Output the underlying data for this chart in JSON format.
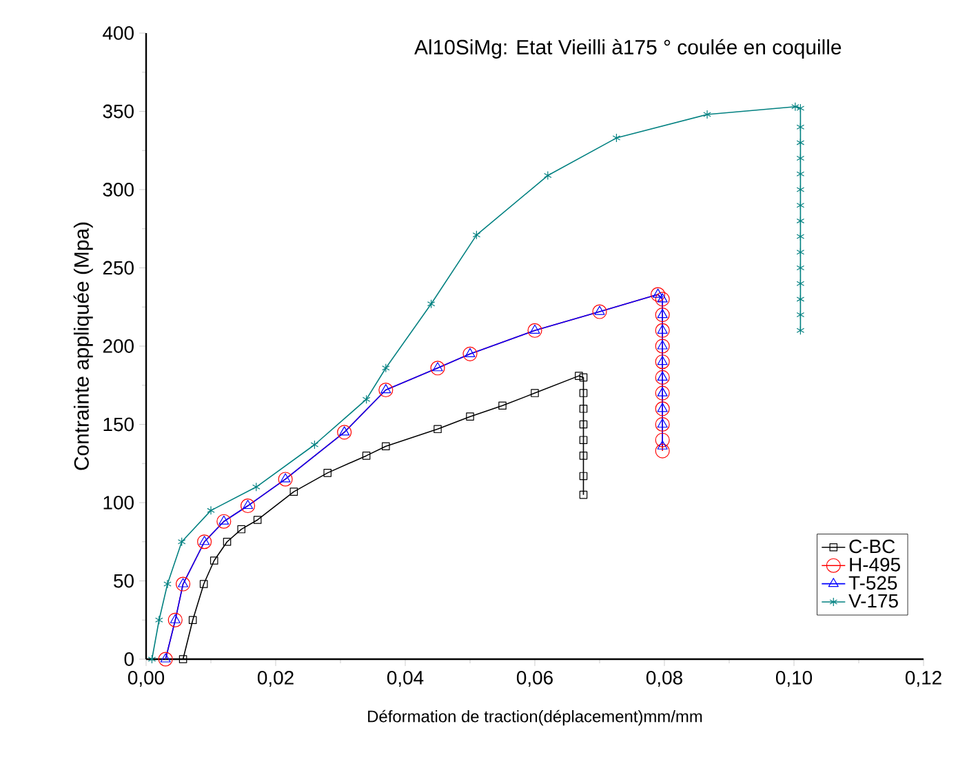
{
  "chart_data": {
    "type": "line",
    "title": "Al10SiMg: Etat Vieilli à175 ° coulée en coquille",
    "xlabel": "Déformation de traction(déplacement)mm/mm",
    "ylabel": "Contrainte appliquée (Mpa)",
    "xlim": [
      0,
      0.12
    ],
    "ylim": [
      0,
      400
    ],
    "xticks": [
      {
        "value": 0,
        "label": "0,00"
      },
      {
        "value": 0.02,
        "label": "0,02"
      },
      {
        "value": 0.04,
        "label": "0,04"
      },
      {
        "value": 0.06,
        "label": "0,06"
      },
      {
        "value": 0.08,
        "label": "0,08"
      },
      {
        "value": 0.1,
        "label": "0,10"
      },
      {
        "value": 0.12,
        "label": "0,12"
      }
    ],
    "yticks": [
      0,
      50,
      100,
      150,
      200,
      250,
      300,
      350,
      400
    ],
    "legend": "bottom right",
    "grid": false,
    "series": [
      {
        "name": "C-BC",
        "color": "#000000",
        "marker": "square",
        "x": [
          0.0057,
          0.0072,
          0.0089,
          0.0105,
          0.0125,
          0.0147,
          0.0172,
          0.0228,
          0.028,
          0.034,
          0.037,
          0.045,
          0.05,
          0.055,
          0.06,
          0.0668,
          0.0675,
          0.0675,
          0.0675,
          0.0675,
          0.0675,
          0.0675,
          0.0675,
          0.0675
        ],
        "values": [
          0,
          25,
          48,
          63,
          75,
          83,
          89,
          107,
          119,
          130,
          136,
          147,
          155,
          162,
          170,
          181,
          180,
          170,
          160,
          150,
          140,
          130,
          117,
          105
        ]
      },
      {
        "name": "H-495",
        "color": "#ff0000",
        "marker": "circle",
        "x": [
          0.003,
          0.0045,
          0.0057,
          0.009,
          0.012,
          0.0157,
          0.0215,
          0.0306,
          0.037,
          0.045,
          0.05,
          0.06,
          0.07,
          0.079,
          0.0797,
          0.0797,
          0.0797,
          0.0797,
          0.0797,
          0.0797,
          0.0797,
          0.0797,
          0.0797,
          0.0797,
          0.0797
        ],
        "values": [
          0,
          25,
          48,
          75,
          88,
          98,
          115,
          145,
          172,
          186,
          195,
          210,
          222,
          233,
          230,
          220,
          210,
          200,
          190,
          180,
          170,
          160,
          150,
          140,
          133
        ]
      },
      {
        "name": "T-525",
        "color": "#0000ff",
        "marker": "triangle",
        "x": [
          0.003,
          0.0045,
          0.0057,
          0.009,
          0.012,
          0.0157,
          0.0215,
          0.0306,
          0.037,
          0.045,
          0.05,
          0.06,
          0.07,
          0.079,
          0.0797,
          0.0797,
          0.0797,
          0.0797,
          0.0797,
          0.0797,
          0.0797,
          0.0797,
          0.0797,
          0.0797
        ],
        "values": [
          0,
          25,
          48,
          75,
          88,
          98,
          115,
          145,
          172,
          186,
          195,
          210,
          222,
          233,
          230,
          220,
          210,
          200,
          190,
          180,
          170,
          160,
          150,
          136
        ]
      },
      {
        "name": "V-175",
        "color": "#008080",
        "marker": "cross",
        "x": [
          0.0009,
          0.002,
          0.0033,
          0.0055,
          0.01,
          0.017,
          0.026,
          0.034,
          0.037,
          0.044,
          0.051,
          0.062,
          0.0726,
          0.0866,
          0.1002,
          0.101,
          0.101,
          0.101,
          0.101,
          0.101,
          0.101,
          0.101,
          0.101,
          0.101,
          0.101,
          0.101,
          0.101,
          0.101,
          0.101,
          0.101
        ],
        "values": [
          0,
          25,
          48,
          75,
          95,
          110,
          137,
          166,
          186,
          227,
          271,
          309,
          333,
          348,
          353,
          352,
          340,
          330,
          320,
          310,
          300,
          290,
          280,
          270,
          260,
          250,
          240,
          230,
          220,
          210
        ]
      }
    ]
  }
}
